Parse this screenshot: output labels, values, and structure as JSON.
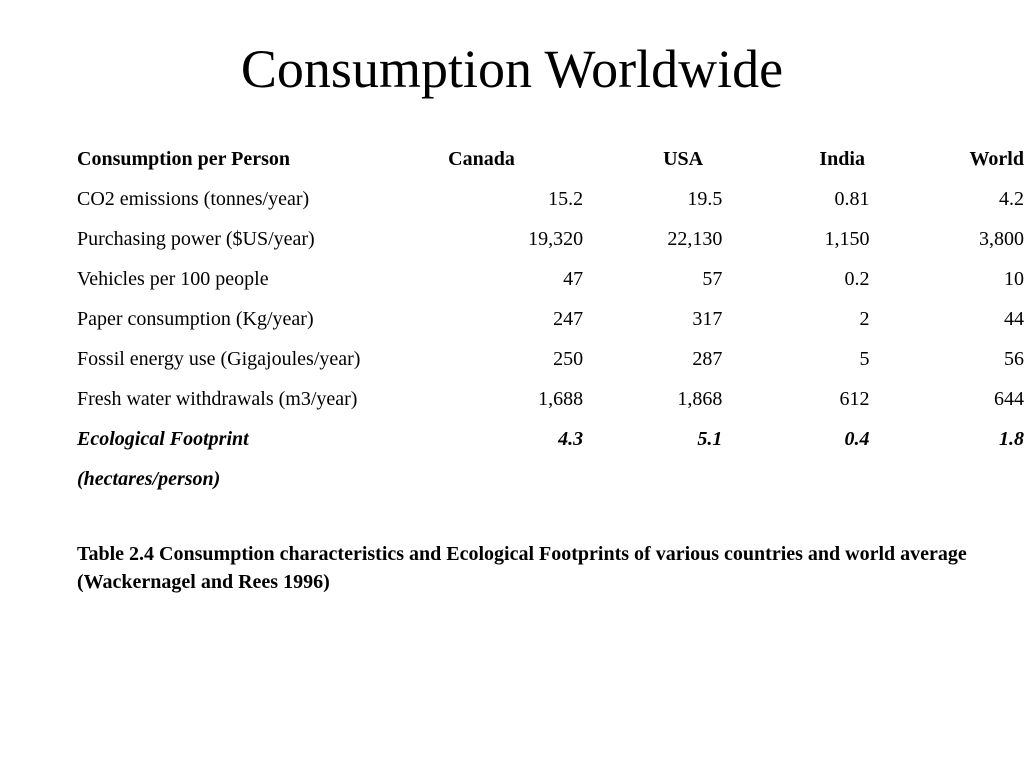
{
  "slide": {
    "title": "Consumption Worldwide"
  },
  "table": {
    "headers": [
      "Consumption per Person",
      "Canada",
      "USA",
      "India",
      "World"
    ],
    "rows": [
      [
        "CO2 emissions (tonnes/year)",
        "15.2",
        "19.5",
        "0.81",
        "4.2"
      ],
      [
        "Purchasing power ($US/year)",
        "19,320",
        "22,130",
        "1,150",
        "3,800"
      ],
      [
        "Vehicles per 100 people",
        "47",
        "57",
        "0.2",
        "10"
      ],
      [
        "Paper consumption (Kg/year)",
        "247",
        "317",
        "2",
        "44"
      ],
      [
        "Fossil energy use (Gigajoules/year)",
        "250",
        "287",
        "5",
        "56"
      ],
      [
        "Fresh water withdrawals (m3/year)",
        "1,688",
        "1,868",
        "612",
        "644"
      ]
    ],
    "footprint_row": [
      "Ecological Footprint",
      "4.3",
      "5.1",
      "0.4",
      "1.8"
    ],
    "footprint_unit": "(hectares/person)"
  },
  "caption": "Table 2.4  Consumption characteristics and Ecological Footprints of various countries and world average (Wackernagel and Rees 1996)"
}
